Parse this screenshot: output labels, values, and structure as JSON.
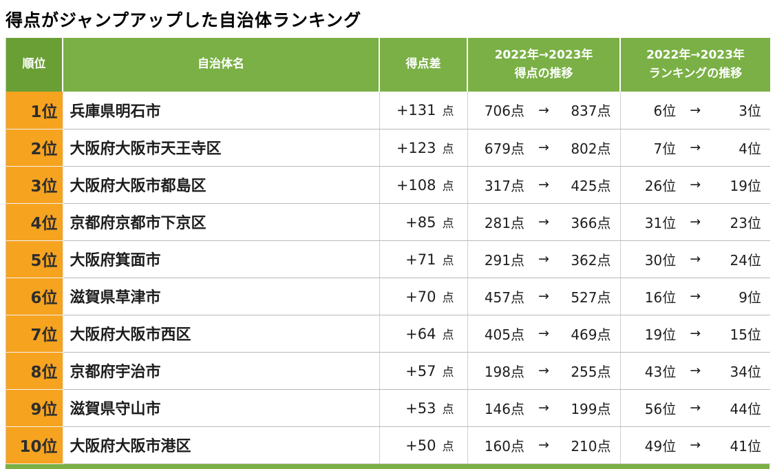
{
  "title": "得点がジャンプアップした自治体ランキング",
  "glyphs": {
    "arrow": "→"
  },
  "colors": {
    "header_green": "#7ab045",
    "rank_header_green": "#699f35",
    "rank_orange": "#f6a320",
    "row_border": "#b9b9b9"
  },
  "table": {
    "headers": {
      "rank": "順位",
      "name": "自治体名",
      "diff": "得点差",
      "score_l1": "2022年→2023年",
      "score_l2": "得点の推移",
      "ranking_l1": "2022年→2023年",
      "ranking_l2": "ランキングの推移"
    },
    "rows": [
      {
        "rank": "1位",
        "name": "兵庫県明石市",
        "diff_num": "+131",
        "diff_unit": "点",
        "score_from": "706点",
        "score_to": "837点",
        "rank_from": "6位",
        "rank_to": "3位"
      },
      {
        "rank": "2位",
        "name": "大阪府大阪市天王寺区",
        "diff_num": "+123",
        "diff_unit": "点",
        "score_from": "679点",
        "score_to": "802点",
        "rank_from": "7位",
        "rank_to": "4位"
      },
      {
        "rank": "3位",
        "name": "大阪府大阪市都島区",
        "diff_num": "+108",
        "diff_unit": "点",
        "score_from": "317点",
        "score_to": "425点",
        "rank_from": "26位",
        "rank_to": "19位"
      },
      {
        "rank": "4位",
        "name": "京都府京都市下京区",
        "diff_num": "+85",
        "diff_unit": "点",
        "score_from": "281点",
        "score_to": "366点",
        "rank_from": "31位",
        "rank_to": "23位"
      },
      {
        "rank": "5位",
        "name": "大阪府箕面市",
        "diff_num": "+71",
        "diff_unit": "点",
        "score_from": "291点",
        "score_to": "362点",
        "rank_from": "30位",
        "rank_to": "24位"
      },
      {
        "rank": "6位",
        "name": "滋賀県草津市",
        "diff_num": "+70",
        "diff_unit": "点",
        "score_from": "457点",
        "score_to": "527点",
        "rank_from": "16位",
        "rank_to": "9位"
      },
      {
        "rank": "7位",
        "name": "大阪府大阪市西区",
        "diff_num": "+64",
        "diff_unit": "点",
        "score_from": "405点",
        "score_to": "469点",
        "rank_from": "19位",
        "rank_to": "15位"
      },
      {
        "rank": "8位",
        "name": "京都府宇治市",
        "diff_num": "+57",
        "diff_unit": "点",
        "score_from": "198点",
        "score_to": "255点",
        "rank_from": "43位",
        "rank_to": "34位"
      },
      {
        "rank": "9位",
        "name": "滋賀県守山市",
        "diff_num": "+53",
        "diff_unit": "点",
        "score_from": "146点",
        "score_to": "199点",
        "rank_from": "56位",
        "rank_to": "44位"
      },
      {
        "rank": "10位",
        "name": "大阪府大阪市港区",
        "diff_num": "+50",
        "diff_unit": "点",
        "score_from": "160点",
        "score_to": "210点",
        "rank_from": "49位",
        "rank_to": "41位"
      }
    ]
  },
  "chart_data": {
    "type": "table",
    "title": "得点がジャンプアップした自治体ランキング",
    "columns": [
      "順位",
      "自治体名",
      "得点差",
      "2022年→2023年 得点の推移",
      "2022年→2023年 ランキングの推移"
    ],
    "rows": [
      [
        "1位",
        "兵庫県明石市",
        "+131点",
        "706点→837点",
        "6位→3位"
      ],
      [
        "2位",
        "大阪府大阪市天王寺区",
        "+123点",
        "679点→802点",
        "7位→4位"
      ],
      [
        "3位",
        "大阪府大阪市都島区",
        "+108点",
        "317点→425点",
        "26位→19位"
      ],
      [
        "4位",
        "京都府京都市下京区",
        "+85点",
        "281点→366点",
        "31位→23位"
      ],
      [
        "5位",
        "大阪府箕面市",
        "+71点",
        "291点→362点",
        "30位→24位"
      ],
      [
        "6位",
        "滋賀県草津市",
        "+70点",
        "457点→527点",
        "16位→9位"
      ],
      [
        "7位",
        "大阪府大阪市西区",
        "+64点",
        "405点→469点",
        "19位→15位"
      ],
      [
        "8位",
        "京都府宇治市",
        "+57点",
        "198点→255点",
        "43位→34位"
      ],
      [
        "9位",
        "滋賀県守山市",
        "+53点",
        "146点→199点",
        "56位→44位"
      ],
      [
        "10位",
        "大阪府大阪市港区",
        "+50点",
        "160点→210点",
        "49位→41位"
      ]
    ]
  }
}
